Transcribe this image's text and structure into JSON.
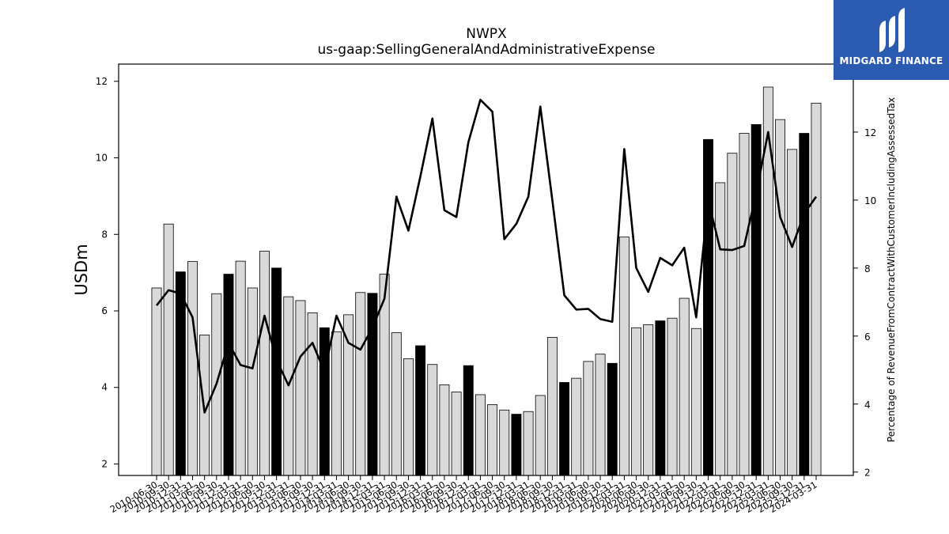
{
  "chart_data": {
    "type": "bar",
    "title": "NWPX",
    "subtitle": "us-gaap:SellingGeneralAndAdministrativeExpense",
    "ylabel": "USDm",
    "ylabel_right": "Percentage of RevenueFromContractWithCustomerIncludingAssessedTax",
    "ylim": [
      1.7,
      12.45
    ],
    "ylim_right": [
      1.9,
      14.0
    ],
    "yticks": [
      2,
      4,
      6,
      8,
      10,
      12
    ],
    "yticks_right": [
      2,
      4,
      6,
      8,
      10,
      12
    ],
    "x_tick_labels": [
      "2010-06-30",
      "2010-09-30",
      "2010-12-31",
      "2011-03-31",
      "2011-06-30",
      "2011-09-30",
      "2011-12-31",
      "2012-03-31",
      "2012-06-30",
      "2012-09-30",
      "2012-12-31",
      "2013-03-31",
      "2013-06-30",
      "2013-09-30",
      "2013-12-31",
      "2014-03-31",
      "2014-06-30",
      "2014-09-30",
      "2014-12-31",
      "2015-03-31",
      "2015-06-30",
      "2015-09-30",
      "2015-12-31",
      "2016-03-31",
      "2016-06-30",
      "2016-09-30",
      "2016-12-31",
      "2017-03-31",
      "2017-06-30",
      "2017-09-30",
      "2017-12-31",
      "2018-03-31",
      "2018-06-30",
      "2018-09-30",
      "2018-12-31",
      "2019-03-31",
      "2019-06-30",
      "2019-09-30",
      "2019-12-31",
      "2020-03-31",
      "2020-06-30",
      "2020-09-30",
      "2020-12-31",
      "2021-03-31",
      "2021-06-30",
      "2021-09-30",
      "2021-12-31",
      "2022-03-31",
      "2022-06-30",
      "2022-09-30",
      "2022-12-31",
      "2023-03-31",
      "2023-06-30",
      "2023-09-30",
      "2023-12-31",
      "2024-03-31"
    ],
    "series": [
      {
        "kind": "bar",
        "values": [
          6.6,
          8.27,
          7.02,
          7.29,
          5.37,
          6.45,
          6.96,
          7.3,
          6.6,
          7.56,
          7.12,
          6.37,
          6.27,
          5.95,
          5.56,
          5.45,
          5.9,
          6.48,
          6.46,
          6.96,
          5.43,
          4.75,
          5.09,
          4.6,
          4.07,
          3.88,
          4.57,
          3.81,
          3.55,
          3.41,
          3.3,
          3.37,
          3.79,
          5.31,
          4.13,
          4.24,
          4.68,
          4.87,
          4.63,
          7.93,
          5.56,
          5.64,
          5.74,
          5.81,
          6.33,
          5.54,
          10.48,
          9.35,
          10.12,
          10.64,
          10.87,
          11.85,
          11.0,
          10.22,
          10.64,
          11.43
        ],
        "highlight": [
          false,
          false,
          true,
          false,
          false,
          false,
          true,
          false,
          false,
          false,
          true,
          false,
          false,
          false,
          true,
          false,
          false,
          false,
          true,
          false,
          false,
          false,
          true,
          false,
          false,
          false,
          true,
          false,
          false,
          false,
          true,
          false,
          false,
          false,
          true,
          false,
          false,
          false,
          true,
          false,
          false,
          false,
          true,
          false,
          false,
          false,
          true,
          false,
          false,
          false,
          true,
          false,
          false,
          false,
          true,
          false
        ],
        "colors": {
          "bar": "#d9d9d9",
          "highlight": "#000000",
          "edge": "#000000"
        }
      },
      {
        "kind": "line",
        "axis": "right",
        "color": "#000000",
        "values": [
          6.9,
          7.35,
          7.25,
          6.55,
          3.75,
          4.6,
          5.8,
          5.15,
          5.05,
          6.6,
          5.3,
          4.55,
          5.4,
          5.8,
          4.95,
          6.6,
          5.8,
          5.6,
          6.25,
          7.1,
          10.1,
          9.1,
          10.7,
          12.4,
          9.7,
          9.5,
          11.7,
          12.95,
          12.6,
          8.85,
          9.3,
          10.1,
          12.75,
          10.0,
          7.2,
          6.78,
          6.8,
          6.5,
          6.42,
          11.5,
          8.0,
          7.3,
          8.3,
          8.08,
          8.6,
          6.55,
          10.0,
          8.55,
          8.53,
          8.65,
          10.2,
          12.0,
          9.5,
          8.62,
          9.6,
          10.1
        ]
      }
    ]
  },
  "logo": {
    "text": "MIDGARD FINANCE",
    "color": "#2b5bb0"
  }
}
